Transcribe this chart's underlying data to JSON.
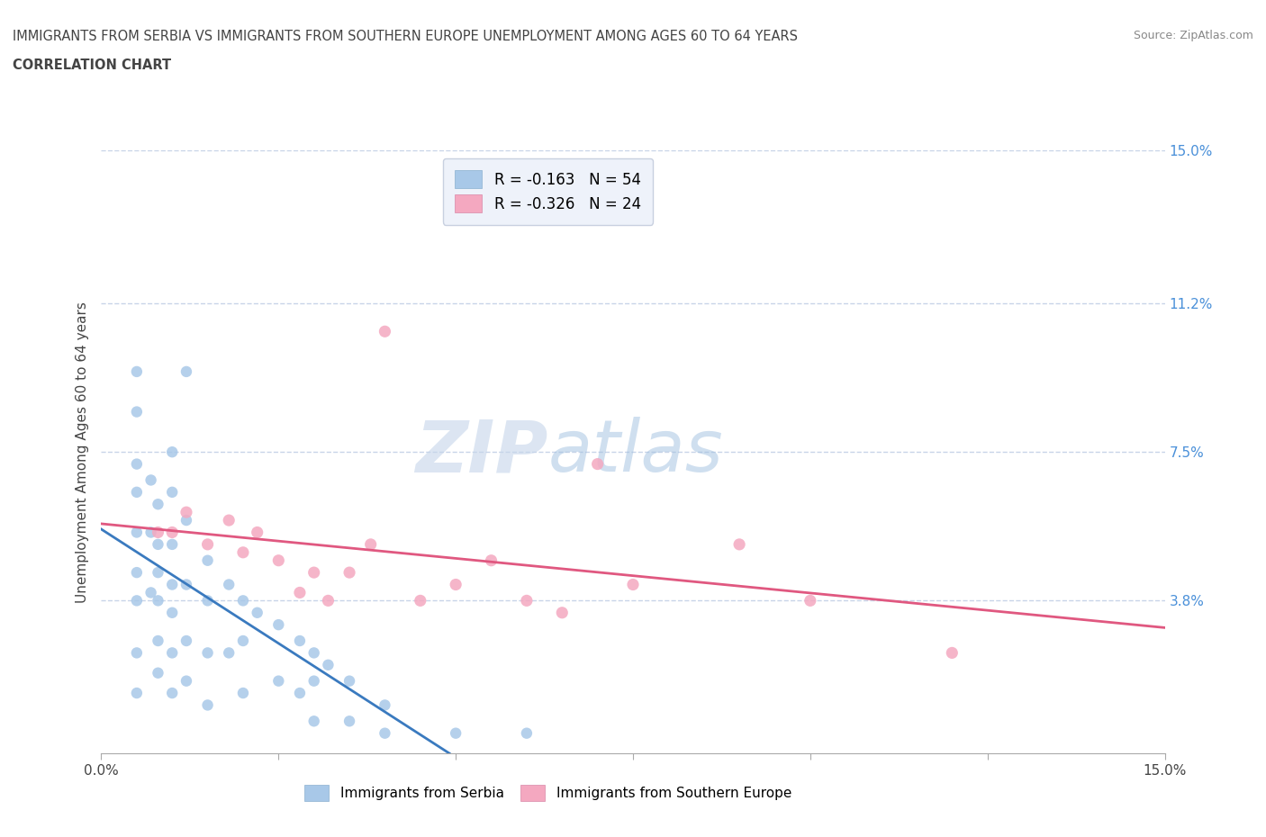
{
  "title_line1": "IMMIGRANTS FROM SERBIA VS IMMIGRANTS FROM SOUTHERN EUROPE UNEMPLOYMENT AMONG AGES 60 TO 64 YEARS",
  "title_line2": "CORRELATION CHART",
  "source": "Source: ZipAtlas.com",
  "ylabel": "Unemployment Among Ages 60 to 64 years",
  "xlim": [
    0.0,
    0.15
  ],
  "ylim": [
    0.0,
    0.15
  ],
  "right_ytick_labels": [
    "15.0%",
    "11.2%",
    "7.5%",
    "3.8%"
  ],
  "right_ytick_vals": [
    0.15,
    0.112,
    0.075,
    0.038
  ],
  "grid_ytick_vals": [
    0.15,
    0.112,
    0.075,
    0.038
  ],
  "serbia_color": "#a8c8e8",
  "southern_color": "#f4a8c0",
  "serbia_line_color": "#3a7abf",
  "southern_line_color": "#e05880",
  "dashed_line_color": "#90b8e0",
  "watermark_zip": "ZIP",
  "watermark_atlas": "atlas",
  "legend_serbia_R": "-0.163",
  "legend_serbia_N": "54",
  "legend_southern_R": "-0.326",
  "legend_southern_N": "24",
  "serbia_scatter_x": [
    0.005,
    0.005,
    0.005,
    0.005,
    0.005,
    0.005,
    0.005,
    0.005,
    0.005,
    0.007,
    0.007,
    0.007,
    0.008,
    0.008,
    0.008,
    0.008,
    0.008,
    0.008,
    0.01,
    0.01,
    0.01,
    0.01,
    0.01,
    0.01,
    0.01,
    0.012,
    0.012,
    0.012,
    0.012,
    0.012,
    0.015,
    0.015,
    0.015,
    0.015,
    0.018,
    0.018,
    0.02,
    0.02,
    0.02,
    0.022,
    0.025,
    0.025,
    0.028,
    0.028,
    0.03,
    0.03,
    0.03,
    0.032,
    0.035,
    0.035,
    0.04,
    0.04,
    0.05,
    0.06
  ],
  "serbia_scatter_y": [
    0.095,
    0.085,
    0.072,
    0.065,
    0.055,
    0.045,
    0.038,
    0.025,
    0.015,
    0.068,
    0.055,
    0.04,
    0.062,
    0.052,
    0.045,
    0.038,
    0.028,
    0.02,
    0.075,
    0.065,
    0.052,
    0.042,
    0.035,
    0.025,
    0.015,
    0.095,
    0.058,
    0.042,
    0.028,
    0.018,
    0.048,
    0.038,
    0.025,
    0.012,
    0.042,
    0.025,
    0.038,
    0.028,
    0.015,
    0.035,
    0.032,
    0.018,
    0.028,
    0.015,
    0.025,
    0.018,
    0.008,
    0.022,
    0.018,
    0.008,
    0.012,
    0.005,
    0.005,
    0.005
  ],
  "southern_scatter_x": [
    0.008,
    0.01,
    0.012,
    0.015,
    0.018,
    0.02,
    0.022,
    0.025,
    0.028,
    0.03,
    0.032,
    0.035,
    0.038,
    0.04,
    0.045,
    0.05,
    0.055,
    0.06,
    0.065,
    0.07,
    0.075,
    0.09,
    0.1,
    0.12
  ],
  "southern_scatter_y": [
    0.055,
    0.055,
    0.06,
    0.052,
    0.058,
    0.05,
    0.055,
    0.048,
    0.04,
    0.045,
    0.038,
    0.045,
    0.052,
    0.105,
    0.038,
    0.042,
    0.048,
    0.038,
    0.035,
    0.072,
    0.042,
    0.052,
    0.038,
    0.025
  ],
  "background_color": "#ffffff",
  "grid_color": "#c8d4e8",
  "legend_box_color": "#eef2fa",
  "xtick_vals": [
    0.0,
    0.025,
    0.05,
    0.075,
    0.1,
    0.125,
    0.15
  ]
}
